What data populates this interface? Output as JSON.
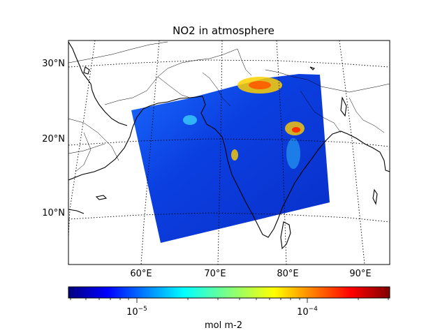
{
  "title": "NO2 in atmosphere",
  "map": {
    "lat_labels": [
      "30°N",
      "20°N",
      "10°N"
    ],
    "lon_labels": [
      "60°E",
      "70°E",
      "80°E",
      "90°E"
    ],
    "gridlines": "dotted",
    "swath_colormap": "jet"
  },
  "colorbar": {
    "label": "mol m-2",
    "scale": "log",
    "tick_base": "10",
    "tick_exponents": [
      "−5",
      "−4"
    ],
    "colors": [
      "#00007f",
      "#0000ff",
      "#007fff",
      "#00ffff",
      "#7fff7f",
      "#ffff00",
      "#ff7f00",
      "#ff0000",
      "#7f0000"
    ]
  }
}
